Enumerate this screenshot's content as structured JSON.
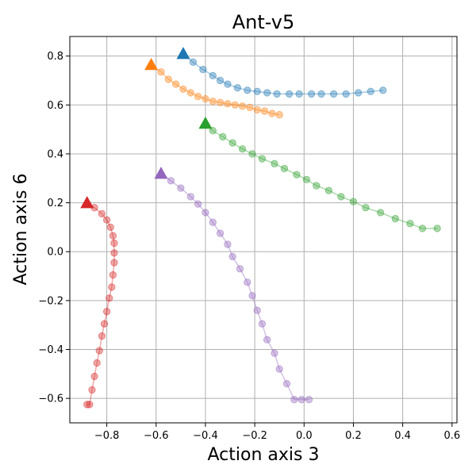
{
  "chart_data": {
    "type": "line",
    "title": "Ant-v5",
    "xlabel": "Action axis 3",
    "ylabel": "Action axis 6",
    "xlim": [
      -0.95,
      0.62
    ],
    "ylim": [
      -0.7,
      0.88
    ],
    "xticks": [
      -0.8,
      -0.6,
      -0.4,
      -0.2,
      0.0,
      0.2,
      0.4,
      0.6
    ],
    "xtick_labels": [
      "−0.8",
      "−0.6",
      "−0.4",
      "−0.2",
      "0.0",
      "0.2",
      "0.4",
      "0.6"
    ],
    "yticks": [
      -0.6,
      -0.4,
      -0.2,
      0.0,
      0.2,
      0.4,
      0.6,
      0.8
    ],
    "ytick_labels": [
      "−0.6",
      "−0.4",
      "−0.2",
      "0.0",
      "0.2",
      "0.4",
      "0.6",
      "0.8"
    ],
    "grid": true,
    "legend": false,
    "start_marker": "triangle",
    "series": [
      {
        "color": "#1f77b4",
        "x": [
          -0.49,
          -0.45,
          -0.41,
          -0.37,
          -0.34,
          -0.31,
          -0.27,
          -0.23,
          -0.19,
          -0.15,
          -0.11,
          -0.06,
          -0.02,
          0.03,
          0.07,
          0.12,
          0.17,
          0.22,
          0.27,
          0.32
        ],
        "y": [
          0.81,
          0.775,
          0.745,
          0.72,
          0.7,
          0.685,
          0.67,
          0.66,
          0.655,
          0.65,
          0.645,
          0.645,
          0.645,
          0.645,
          0.645,
          0.645,
          0.645,
          0.65,
          0.655,
          0.66
        ]
      },
      {
        "color": "#ff7f0e",
        "x": [
          -0.62,
          -0.58,
          -0.55,
          -0.52,
          -0.49,
          -0.46,
          -0.43,
          -0.4,
          -0.37,
          -0.34,
          -0.31,
          -0.28,
          -0.25,
          -0.22,
          -0.19,
          -0.16,
          -0.13,
          -0.1
        ],
        "y": [
          0.765,
          0.735,
          0.705,
          0.685,
          0.665,
          0.65,
          0.635,
          0.625,
          0.615,
          0.61,
          0.605,
          0.6,
          0.595,
          0.59,
          0.58,
          0.575,
          0.565,
          0.56
        ]
      },
      {
        "color": "#2ca02c",
        "x": [
          -0.4,
          -0.37,
          -0.33,
          -0.29,
          -0.25,
          -0.21,
          -0.17,
          -0.12,
          -0.08,
          -0.03,
          0.01,
          0.05,
          0.1,
          0.15,
          0.2,
          0.25,
          0.31,
          0.37,
          0.43,
          0.48,
          0.54
        ],
        "y": [
          0.525,
          0.495,
          0.47,
          0.445,
          0.42,
          0.4,
          0.38,
          0.36,
          0.34,
          0.315,
          0.295,
          0.27,
          0.25,
          0.225,
          0.205,
          0.18,
          0.16,
          0.135,
          0.115,
          0.095,
          0.095
        ]
      },
      {
        "color": "#d62728",
        "x": [
          -0.88,
          -0.85,
          -0.82,
          -0.8,
          -0.785,
          -0.775,
          -0.77,
          -0.77,
          -0.77,
          -0.775,
          -0.78,
          -0.79,
          -0.8,
          -0.81,
          -0.82,
          -0.83,
          -0.84,
          -0.85,
          -0.86,
          -0.87,
          -0.88
        ],
        "y": [
          0.2,
          0.18,
          0.155,
          0.13,
          0.1,
          0.065,
          0.035,
          -0.005,
          -0.045,
          -0.095,
          -0.145,
          -0.19,
          -0.245,
          -0.295,
          -0.345,
          -0.405,
          -0.455,
          -0.51,
          -0.565,
          -0.625,
          -0.625
        ]
      },
      {
        "color": "#9467bd",
        "x": [
          -0.58,
          -0.54,
          -0.5,
          -0.46,
          -0.43,
          -0.4,
          -0.37,
          -0.34,
          -0.31,
          -0.29,
          -0.26,
          -0.23,
          -0.21,
          -0.19,
          -0.17,
          -0.15,
          -0.12,
          -0.1,
          -0.07,
          -0.04,
          -0.01,
          0.02
        ],
        "y": [
          0.32,
          0.29,
          0.26,
          0.225,
          0.195,
          0.16,
          0.12,
          0.075,
          0.03,
          -0.02,
          -0.07,
          -0.125,
          -0.18,
          -0.24,
          -0.295,
          -0.36,
          -0.415,
          -0.48,
          -0.54,
          -0.605,
          -0.605,
          -0.605
        ]
      }
    ]
  }
}
